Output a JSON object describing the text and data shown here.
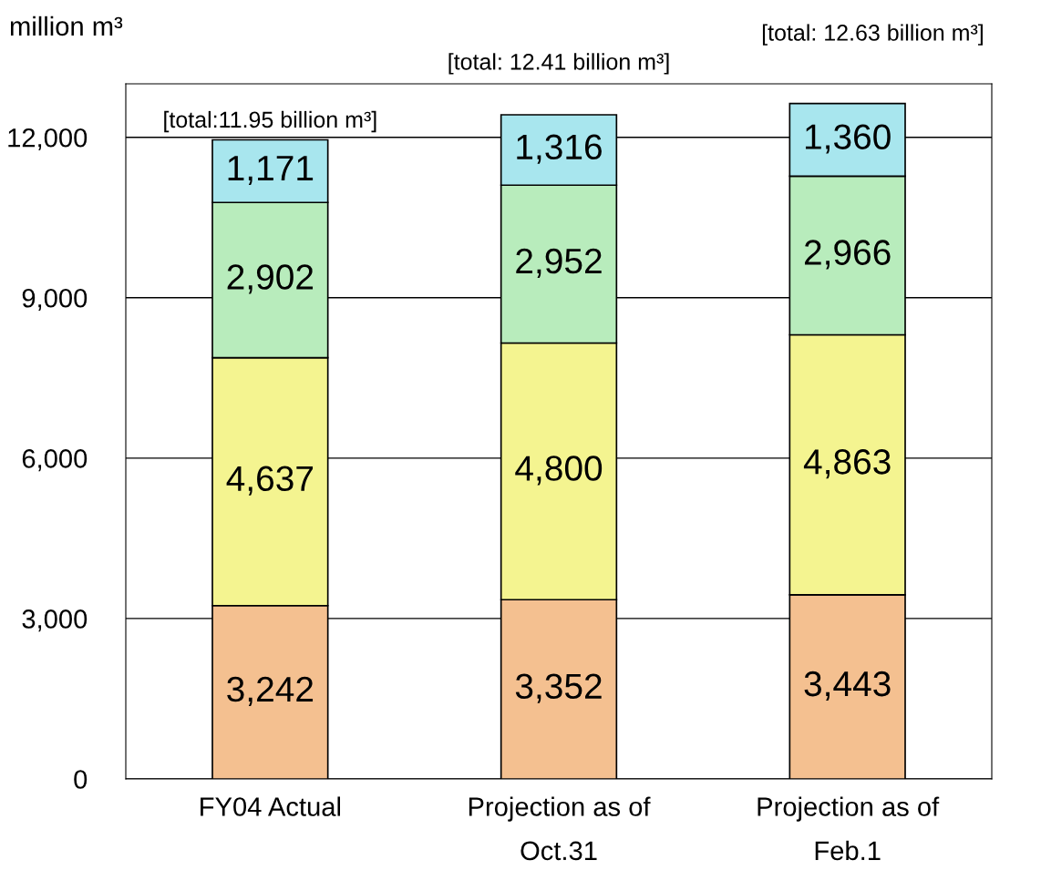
{
  "chart_data": {
    "type": "bar",
    "stacked": true,
    "ylabel": "million m³",
    "categories": [
      "FY04 Actual",
      "Projection as of\nOct.31",
      "Projection as of\nFeb.1"
    ],
    "series": [
      {
        "color": "#f4c090",
        "values": [
          3242,
          3352,
          3443
        ],
        "value_labels": [
          "3,242",
          "3,352",
          "3,443"
        ]
      },
      {
        "color": "#f4f490",
        "values": [
          4637,
          4800,
          4863
        ],
        "value_labels": [
          "4,637",
          "4,800",
          "4,863"
        ]
      },
      {
        "color": "#b8ecbc",
        "values": [
          2902,
          2952,
          2966
        ],
        "value_labels": [
          "2,902",
          "2,952",
          "2,966"
        ]
      },
      {
        "color": "#a8e6ee",
        "values": [
          1171,
          1316,
          1360
        ],
        "value_labels": [
          "1,171",
          "1,316",
          "1,360"
        ]
      }
    ],
    "totals": [
      "[total:11.95 billion m³]",
      "[total: 12.41 billion m³]",
      "[total: 12.63 billion m³]"
    ],
    "ylim": [
      0,
      13000
    ],
    "yticks": [
      {
        "value": 0,
        "label": "0"
      },
      {
        "value": 3000,
        "label": "3,000"
      },
      {
        "value": 6000,
        "label": "6,000"
      },
      {
        "value": 9000,
        "label": "9,000"
      },
      {
        "value": 12000,
        "label": "12,000"
      }
    ],
    "grid": "y",
    "legend": false
  }
}
